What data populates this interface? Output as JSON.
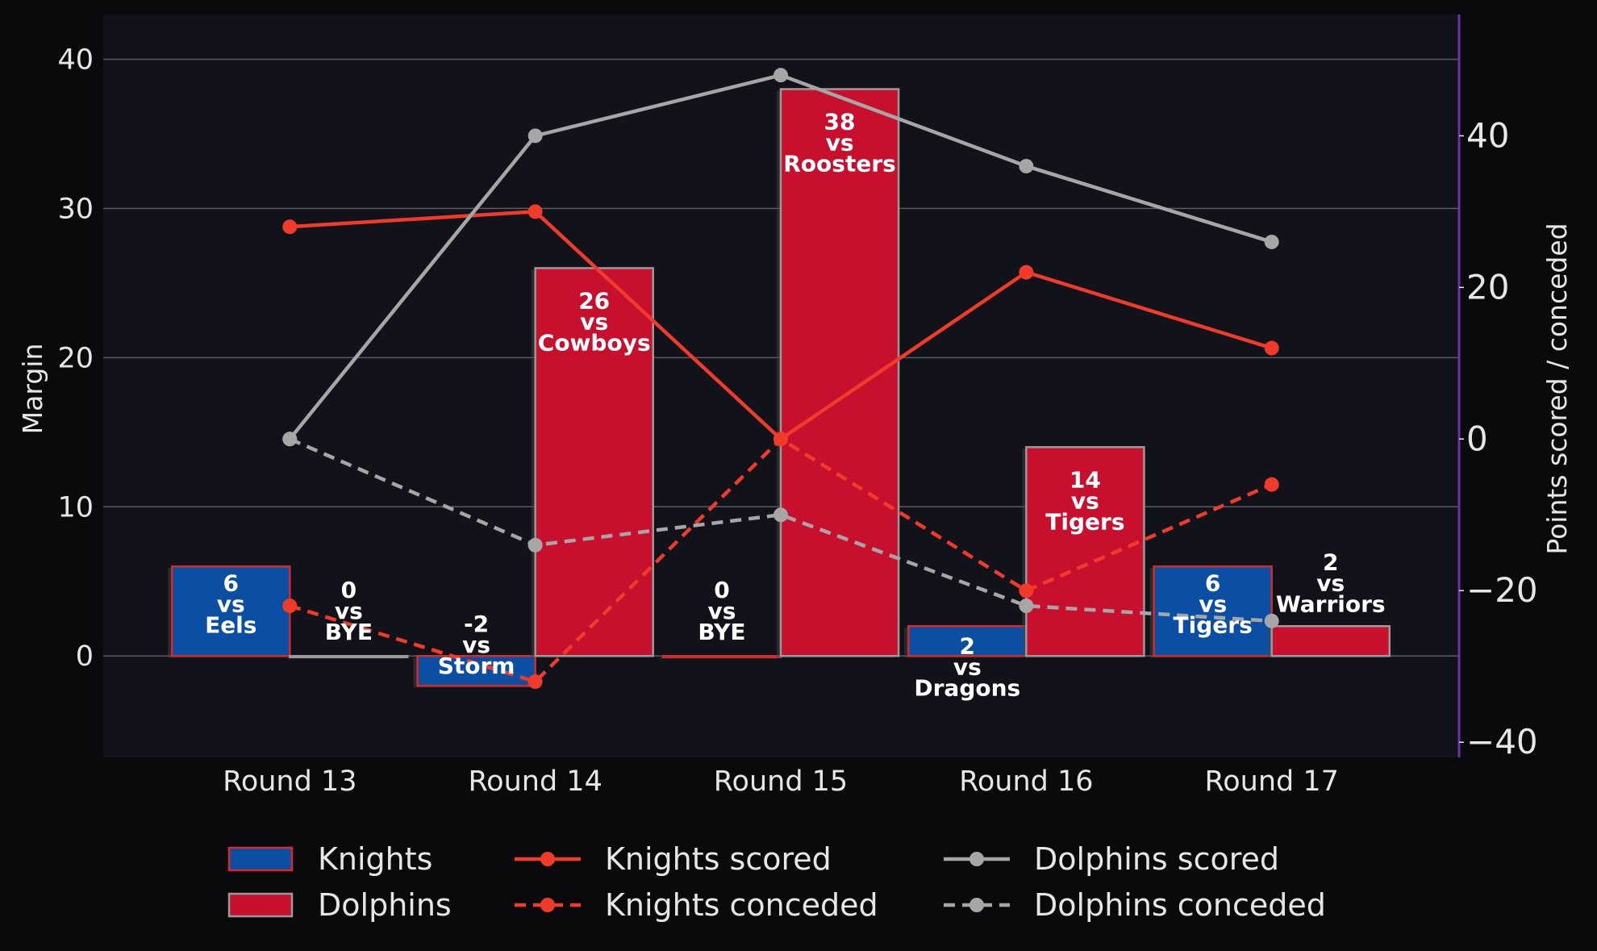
{
  "chart_data": {
    "type": "bar",
    "categories": [
      "Round 13",
      "Round 14",
      "Round 15",
      "Round 16",
      "Round 17"
    ],
    "ylabel": "Margin",
    "y2label": "Points scored / conceded",
    "ylim": [
      -6.8,
      43
    ],
    "y2lim": [
      -42,
      56
    ],
    "yticks": [
      "0",
      "10",
      "20",
      "30",
      "40"
    ],
    "y2ticks": [
      "−40",
      "−20",
      "0",
      "20",
      "40"
    ],
    "grid": true,
    "legend_position": "bottom",
    "colors": {
      "knights": "#0a4fa3",
      "dolphins": "#c8102e",
      "knights_line": "#f03a2a",
      "dolphins_line": "#a6a6a6",
      "right_axis": "#6a2faa"
    },
    "bar_series": [
      {
        "name": "Knights",
        "values": [
          6,
          -2,
          0,
          2,
          6
        ],
        "labels": [
          [
            "6",
            "vs",
            "Eels"
          ],
          [
            "-2",
            "vs",
            "Storm"
          ],
          [
            "0",
            "vs",
            "BYE"
          ],
          [
            "2",
            "vs",
            "Dragons"
          ],
          [
            "6",
            "vs",
            "Tigers"
          ]
        ]
      },
      {
        "name": "Dolphins",
        "values": [
          0,
          26,
          38,
          14,
          2
        ],
        "labels": [
          [
            "0",
            "vs",
            "BYE"
          ],
          [
            "26",
            "vs",
            "Cowboys"
          ],
          [
            "38",
            "vs",
            "Roosters"
          ],
          [
            "14",
            "vs",
            "Tigers"
          ],
          [
            "2",
            "vs",
            "Warriors"
          ]
        ]
      }
    ],
    "line_series": [
      {
        "name": "Knights scored",
        "values": [
          28,
          30,
          0,
          22,
          12
        ]
      },
      {
        "name": "Knights conceded",
        "values": [
          -22,
          -32,
          0,
          -20,
          -6
        ]
      },
      {
        "name": "Dolphins scored",
        "values": [
          0,
          40,
          48,
          36,
          26
        ]
      },
      {
        "name": "Dolphins conceded",
        "values": [
          0,
          -14,
          -10,
          -22,
          -24
        ]
      }
    ]
  }
}
